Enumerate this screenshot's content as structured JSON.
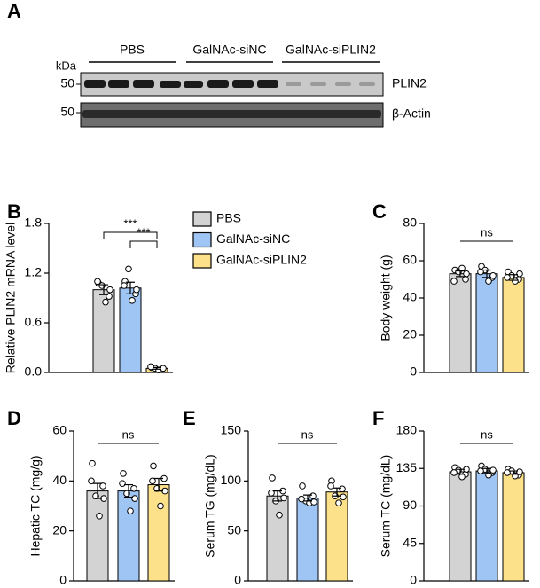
{
  "panel_a": {
    "letter": "A",
    "unit": "kDa",
    "marker_top": "50",
    "marker_bottom": "50",
    "groups": [
      "PBS",
      "GalNAc-siNC",
      "GalNAc-siPLIN2"
    ],
    "band_top": "PLIN2",
    "band_bottom": "β-Actin"
  },
  "legend": [
    "PBS",
    "GalNAc-siNC",
    "GalNAc-siPLIN2"
  ],
  "chart_data": [
    {
      "type": "bar",
      "panel": "B",
      "ylabel": "Relative PLIN2 mRNA level",
      "ylim": [
        0,
        1.8
      ],
      "yticks": [
        {
          "value": 0,
          "label": "0.0"
        },
        0.6,
        1.2,
        1.8
      ],
      "significance": [
        "***",
        "***"
      ],
      "series": [
        {
          "name": "PBS",
          "color": "#d3d3d3",
          "values": [
            1.0
          ],
          "errors": [
            0.06
          ],
          "points": [
            1.08,
            0.92,
            1.05,
            0.85,
            1.1,
            1.0
          ]
        },
        {
          "name": "GalNAc-siNC",
          "color": "#9fc5f5",
          "values": [
            1.02
          ],
          "errors": [
            0.07
          ],
          "points": [
            1.1,
            0.95,
            1.25,
            0.87,
            1.05,
            1.0
          ]
        },
        {
          "name": "GalNAc-siPLIN2",
          "color": "#fde08a",
          "values": [
            0.05
          ],
          "errors": [
            0.01
          ],
          "points": [
            0.06,
            0.04,
            0.05,
            0.03,
            0.07,
            0.05
          ]
        }
      ]
    },
    {
      "type": "bar",
      "panel": "C",
      "ylabel": "Body weight (g)",
      "ylim": [
        0,
        80
      ],
      "yticks": [
        0,
        20,
        40,
        60,
        80
      ],
      "significance": [
        "ns"
      ],
      "series": [
        {
          "name": "PBS",
          "color": "#d3d3d3",
          "values": [
            53
          ],
          "errors": [
            1.5
          ],
          "points": [
            55,
            50,
            54,
            56,
            49,
            53
          ]
        },
        {
          "name": "GalNAc-siNC",
          "color": "#9fc5f5",
          "values": [
            53
          ],
          "errors": [
            2
          ],
          "points": [
            57,
            51,
            55,
            49,
            54,
            52
          ]
        },
        {
          "name": "GalNAc-siPLIN2",
          "color": "#fde08a",
          "values": [
            51
          ],
          "errors": [
            1.5
          ],
          "points": [
            54,
            50,
            52,
            49,
            51,
            53
          ]
        }
      ]
    },
    {
      "type": "bar",
      "panel": "D",
      "ylabel": "Hepatic TC (mg/g)",
      "ylim": [
        0,
        60
      ],
      "yticks": [
        0,
        20,
        40,
        60
      ],
      "significance": [
        "ns"
      ],
      "series": [
        {
          "name": "PBS",
          "color": "#d3d3d3",
          "values": [
            36
          ],
          "errors": [
            3
          ],
          "points": [
            47,
            38,
            34,
            26,
            40,
            33
          ]
        },
        {
          "name": "GalNAc-siNC",
          "color": "#9fc5f5",
          "values": [
            36
          ],
          "errors": [
            2.5
          ],
          "points": [
            43,
            37,
            35,
            28,
            39,
            33
          ]
        },
        {
          "name": "GalNAc-siPLIN2",
          "color": "#fde08a",
          "values": [
            38.5
          ],
          "errors": [
            2.5
          ],
          "points": [
            46,
            41,
            37,
            30,
            40,
            36
          ]
        }
      ]
    },
    {
      "type": "bar",
      "panel": "E",
      "ylabel": "Serum TG (mg/dL)",
      "ylim": [
        0,
        150
      ],
      "yticks": [
        0,
        50,
        100,
        150
      ],
      "significance": [
        "ns"
      ],
      "series": [
        {
          "name": "PBS",
          "color": "#d3d3d3",
          "values": [
            85
          ],
          "errors": [
            5
          ],
          "points": [
            103,
            90,
            80,
            66,
            88,
            83
          ]
        },
        {
          "name": "GalNAc-siNC",
          "color": "#9fc5f5",
          "values": [
            83
          ],
          "errors": [
            3
          ],
          "points": [
            95,
            85,
            80,
            78,
            82,
            79
          ]
        },
        {
          "name": "GalNAc-siPLIN2",
          "color": "#fde08a",
          "values": [
            89
          ],
          "errors": [
            4
          ],
          "points": [
            100,
            92,
            85,
            78,
            95,
            84
          ]
        }
      ]
    },
    {
      "type": "bar",
      "panel": "F",
      "ylabel": "Serum TC (mg/dL)",
      "ylim": [
        0,
        180
      ],
      "yticks": [
        0,
        45,
        90,
        135,
        180
      ],
      "significance": [
        "ns"
      ],
      "series": [
        {
          "name": "PBS",
          "color": "#d3d3d3",
          "values": [
            131
          ],
          "errors": [
            3
          ],
          "points": [
            136,
            128,
            133,
            125,
            130,
            134
          ]
        },
        {
          "name": "GalNAc-siNC",
          "color": "#9fc5f5",
          "values": [
            132
          ],
          "errors": [
            3
          ],
          "points": [
            138,
            130,
            134,
            127,
            132,
            133
          ]
        },
        {
          "name": "GalNAc-siPLIN2",
          "color": "#fde08a",
          "values": [
            130
          ],
          "errors": [
            2
          ],
          "points": [
            134,
            127,
            132,
            126,
            130,
            131
          ]
        }
      ]
    }
  ]
}
